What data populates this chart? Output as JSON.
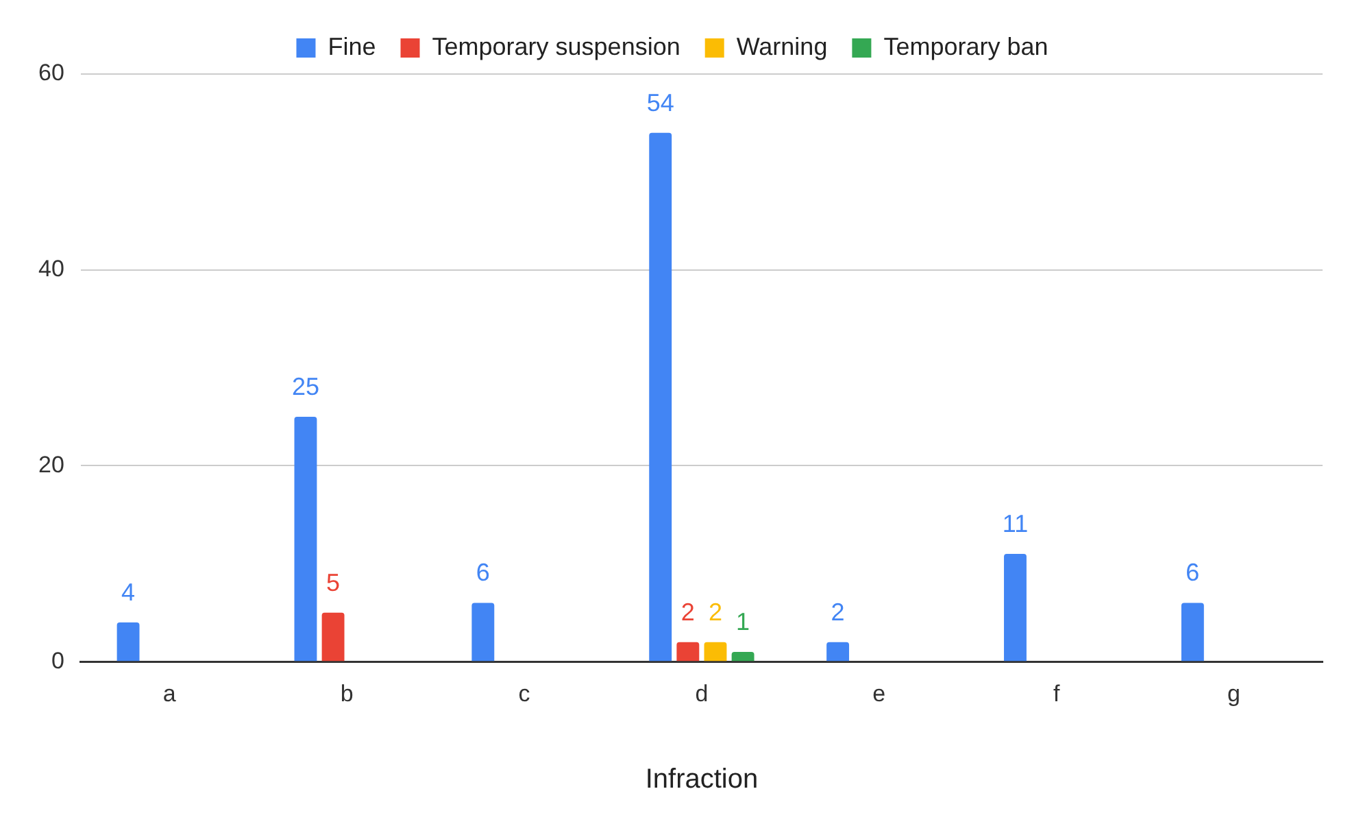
{
  "chart_data": {
    "type": "bar",
    "xlabel": "Infraction",
    "categories": [
      "a",
      "b",
      "c",
      "d",
      "e",
      "f",
      "g"
    ],
    "series": [
      {
        "name": "Fine",
        "color": "#4285f4",
        "values": [
          4,
          25,
          6,
          54,
          2,
          11,
          6
        ]
      },
      {
        "name": "Temporary suspension",
        "color": "#ea4335",
        "values": [
          null,
          5,
          null,
          2,
          null,
          null,
          null
        ]
      },
      {
        "name": "Warning",
        "color": "#fbbc04",
        "values": [
          null,
          null,
          null,
          2,
          null,
          null,
          null
        ]
      },
      {
        "name": "Temporary ban",
        "color": "#34a853",
        "values": [
          null,
          null,
          null,
          1,
          null,
          null,
          null
        ]
      }
    ],
    "ylim": [
      0,
      60
    ],
    "yticks": [
      0,
      20,
      40,
      60
    ],
    "grid": "y",
    "legend": "top",
    "data_labels": true
  }
}
